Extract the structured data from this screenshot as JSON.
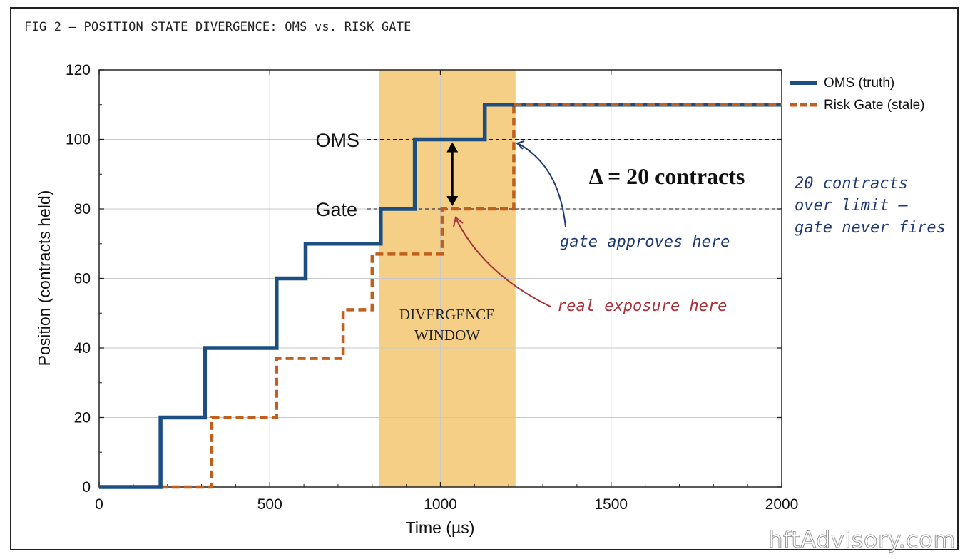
{
  "figure_title": "FIG 2 — POSITION STATE DIVERGENCE: OMS vs. RISK GATE",
  "watermark": "hftAdvisory.com",
  "colors": {
    "oms": "#1c4e82",
    "gate": "#c0601e",
    "window": "#f5cf85",
    "note_blue": "#1f3a73",
    "note_red": "#a8323a"
  },
  "chart_data": {
    "type": "line",
    "step": true,
    "xlabel": "Time (µs)",
    "ylabel": "Position (contracts held)",
    "xlim": [
      0,
      2000
    ],
    "ylim": [
      0,
      120
    ],
    "xticks": [
      0,
      500,
      1000,
      1500,
      2000
    ],
    "yticks": [
      0,
      20,
      40,
      60,
      80,
      100,
      120
    ],
    "grid": true,
    "legend_position": "outside-right-top",
    "series": [
      {
        "name": "OMS (truth)",
        "style": "solid",
        "color": "#1c4e82",
        "points": [
          [
            0,
            0
          ],
          [
            180,
            0
          ],
          [
            180,
            20
          ],
          [
            310,
            20
          ],
          [
            310,
            40
          ],
          [
            520,
            40
          ],
          [
            520,
            60
          ],
          [
            605,
            60
          ],
          [
            605,
            70
          ],
          [
            825,
            70
          ],
          [
            825,
            80
          ],
          [
            925,
            80
          ],
          [
            925,
            100
          ],
          [
            1130,
            100
          ],
          [
            1130,
            110
          ],
          [
            2000,
            110
          ]
        ]
      },
      {
        "name": "Risk Gate (stale)",
        "style": "dashed",
        "color": "#c0601e",
        "points": [
          [
            0,
            0
          ],
          [
            330,
            0
          ],
          [
            330,
            20
          ],
          [
            520,
            20
          ],
          [
            520,
            37
          ],
          [
            715,
            37
          ],
          [
            715,
            51
          ],
          [
            800,
            51
          ],
          [
            800,
            67
          ],
          [
            1005,
            67
          ],
          [
            1005,
            80
          ],
          [
            1215,
            80
          ],
          [
            1215,
            110
          ],
          [
            2000,
            110
          ]
        ]
      }
    ],
    "divergence_window": {
      "x_start": 820,
      "x_end": 1220,
      "label_line1": "DIVERGENCE",
      "label_line2": "WINDOW"
    },
    "reference_lines": [
      {
        "label": "OMS",
        "y": 100
      },
      {
        "label": "Gate",
        "y": 80
      }
    ],
    "delta": {
      "label": "Δ = 20 contracts",
      "x": 1035,
      "y_from": 100,
      "y_to": 80
    },
    "annotations": [
      {
        "text": "gate approves here",
        "color": "#1f3a73",
        "target": [
          1225,
          100
        ]
      },
      {
        "text": "real exposure here",
        "color": "#a8323a",
        "target": [
          1040,
          79
        ]
      }
    ],
    "side_note": {
      "lines": [
        "20 contracts",
        "over limit —",
        "gate never fires"
      ],
      "color": "#1f3a73"
    }
  }
}
